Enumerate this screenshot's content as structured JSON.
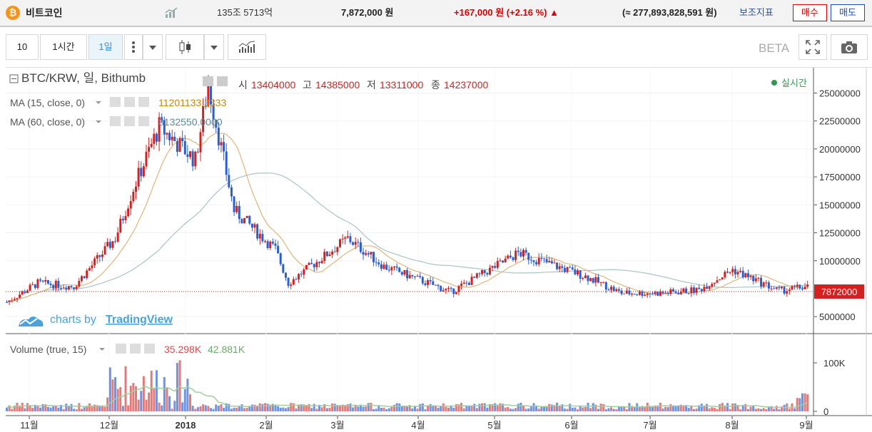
{
  "header": {
    "coin_icon": "₿",
    "coin_name": "비트코인",
    "market_cap": "135조 5713억",
    "price": "7,872,000 원",
    "change": "+167,000 원 (+2.16 %)",
    "change_arrow": "▲",
    "volume_krw": "(≈ 277,893,828,591 원)",
    "aux_indicator": "보조지표",
    "buy": "매수",
    "sell": "매도"
  },
  "toolbar": {
    "count": "10",
    "hour": "1시간",
    "day": "1일",
    "beta": "BETA"
  },
  "chart": {
    "symbol": "BTC/KRW, 일, Bithumb",
    "ohlc": [
      {
        "label": "시",
        "value": "13404000"
      },
      {
        "label": "고",
        "value": "14385000"
      },
      {
        "label": "저",
        "value": "13311000"
      },
      {
        "label": "종",
        "value": "14237000"
      }
    ],
    "realtime": "실시간",
    "ma15_label": "MA (15, close, 0)",
    "ma15_value": "11201133.3333",
    "ma60_label": "MA (60, close, 0)",
    "ma60_value": "8132550.0000",
    "watermark_prefix": "charts by",
    "watermark_brand": "TradingView",
    "price_tag": "7872000",
    "volume_label": "Volume (true, 15)",
    "volume_value": "35.298K",
    "volume_ma": "42.881K",
    "price_axis": [
      "25000000",
      "22500000",
      "20000000",
      "17500000",
      "15000000",
      "12500000",
      "10000000",
      "5000000"
    ],
    "volume_axis": [
      "100K",
      "0"
    ],
    "time_axis": [
      "11월",
      "12월",
      "2018",
      "2월",
      "3월",
      "4월",
      "5월",
      "6월",
      "7월",
      "8월",
      "9월"
    ]
  },
  "colors": {
    "up": "#d42020",
    "down": "#2a5fd3",
    "ma15": "#e2b57a",
    "ma60": "#a9c4c7",
    "accent": "#3b8bd1"
  },
  "chart_data": {
    "type": "candlestick",
    "title": "BTC/KRW, 일, Bithumb",
    "x": [
      "2017-10-20",
      "2017-11-01",
      "2017-11-15",
      "2017-12-01",
      "2017-12-08",
      "2017-12-18",
      "2018-01-01",
      "2018-01-06",
      "2018-01-16",
      "2018-02-01",
      "2018-02-06",
      "2018-03-01",
      "2018-03-15",
      "2018-04-01",
      "2018-04-10",
      "2018-05-01",
      "2018-05-06",
      "2018-06-01",
      "2018-06-15",
      "2018-07-01",
      "2018-07-15",
      "2018-07-28",
      "2018-08-15",
      "2018-08-31"
    ],
    "close": [
      6300000,
      8000000,
      7700000,
      12000000,
      16500000,
      22000000,
      19000000,
      25700000,
      14500000,
      11000000,
      8000000,
      12000000,
      9500000,
      8000000,
      7200000,
      10000000,
      10700000,
      8600000,
      7100000,
      7100000,
      7400000,
      9200000,
      7300000,
      7872000
    ],
    "ylim": [
      4500000,
      26500000
    ],
    "volume": {
      "axis_max": 100000
    }
  }
}
